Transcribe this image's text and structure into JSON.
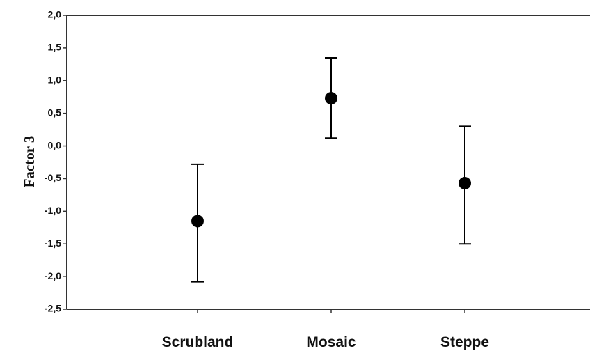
{
  "chart_data": {
    "type": "scatter",
    "categories": [
      "Scrubland",
      "Mosaic",
      "Steppe"
    ],
    "values": [
      -1.15,
      0.73,
      -0.57
    ],
    "error_low": [
      -2.08,
      0.12,
      -1.5
    ],
    "error_high": [
      -0.28,
      1.35,
      0.3
    ],
    "ylabel": "Factor 3",
    "xlabel": "",
    "ylim": [
      -2.5,
      2.0
    ],
    "yticks": [
      "2,0",
      "1,5",
      "1,0",
      "0,5",
      "0,0",
      "-0,5",
      "-1,0",
      "-1,5",
      "-2,0",
      "-2,5"
    ],
    "ytick_values": [
      2.0,
      1.5,
      1.0,
      0.5,
      0.0,
      -0.5,
      -1.0,
      -1.5,
      -2.0,
      -2.5
    ],
    "grid": false,
    "marker_color": "#000000",
    "line_color": "#000000"
  }
}
